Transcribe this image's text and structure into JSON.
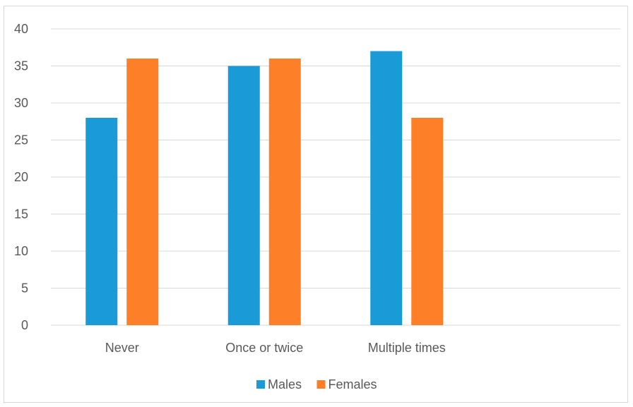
{
  "chart_data": {
    "type": "bar",
    "title": "",
    "xlabel": "",
    "ylabel": "",
    "categories": [
      "Never",
      "Once or twice",
      "Multiple times",
      ""
    ],
    "series": [
      {
        "name": "Males",
        "color": "#1a9ad7",
        "values": [
          28,
          35,
          37,
          null
        ]
      },
      {
        "name": "Females",
        "color": "#fd7f27",
        "values": [
          36,
          36,
          28,
          null
        ]
      }
    ],
    "ylim": [
      0,
      40
    ],
    "yticks": [
      0,
      5,
      10,
      15,
      20,
      25,
      30,
      35,
      40
    ],
    "grid": true,
    "legend_position": "bottom"
  }
}
